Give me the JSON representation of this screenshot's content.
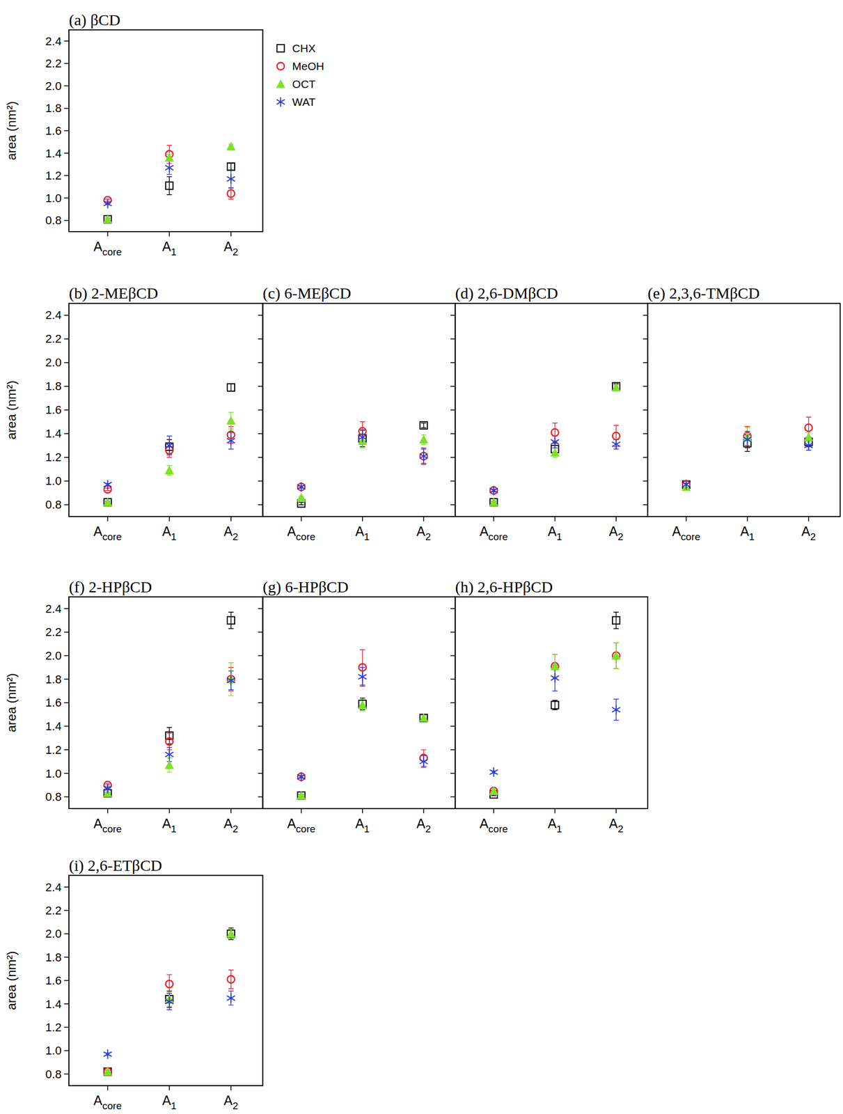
{
  "chart_data": [
    {
      "type": "scatter",
      "title": "(a) βCD",
      "y_label": "area (nm²)",
      "legend": "right",
      "categories": [
        "Acore",
        "A1",
        "A2"
      ],
      "ylim": [
        0.7,
        2.5
      ],
      "yticks": [
        0.8,
        {
          "value": 1,
          "label": "1.0"
        },
        1.2,
        1.4,
        1.6,
        1.8,
        {
          "value": 2,
          "label": "2.0"
        },
        2.2,
        2.4
      ],
      "series": [
        {
          "name": "CHX",
          "color": "#000000",
          "marker": "square",
          "values": [
            0.81,
            1.11,
            1.28
          ],
          "errors": [
            0.01,
            0.08,
            0.03
          ]
        },
        {
          "name": "MeOH",
          "color": "#e8202a",
          "marker": "circle",
          "values": [
            0.98,
            1.39,
            1.04
          ],
          "errors": [
            0.01,
            0.08,
            0.05
          ]
        },
        {
          "name": "OCT",
          "color": "#7ee02a",
          "marker": "triangle",
          "values": [
            0.81,
            1.36,
            1.46
          ],
          "errors": [
            0.01,
            0.03,
            0.02
          ]
        },
        {
          "name": "WAT",
          "color": "#2b3bd9",
          "marker": "asterisk",
          "values": [
            0.95,
            1.27,
            1.17
          ],
          "errors": [
            0.01,
            0.06,
            0.08
          ]
        }
      ]
    },
    {
      "type": "scatter",
      "title": "(b) 2-MEβCD",
      "y_label": "area (nm²)",
      "categories": [
        "Acore",
        "A1",
        "A2"
      ],
      "ylim": [
        0.7,
        2.5
      ],
      "yticks": [
        0.8,
        {
          "value": 1,
          "label": "1.0"
        },
        1.2,
        1.4,
        1.6,
        1.8,
        {
          "value": 2,
          "label": "2.0"
        },
        2.2,
        2.4
      ],
      "series": [
        {
          "color": "#000000",
          "marker": "square",
          "values": [
            0.82,
            1.29,
            1.79
          ],
          "errors": [
            0.01,
            0.06,
            0.03
          ]
        },
        {
          "color": "#e8202a",
          "marker": "circle",
          "values": [
            0.93,
            1.26,
            1.39
          ],
          "errors": [
            0.01,
            0.06,
            0.07
          ]
        },
        {
          "color": "#7ee02a",
          "marker": "triangle",
          "values": [
            0.82,
            1.09,
            1.51
          ],
          "errors": [
            0.01,
            0.04,
            0.07
          ]
        },
        {
          "color": "#2b3bd9",
          "marker": "asterisk",
          "values": [
            0.97,
            1.3,
            1.34
          ],
          "errors": [
            0.01,
            0.08,
            0.07
          ]
        }
      ]
    },
    {
      "type": "scatter",
      "title": "(c) 6-MEβCD",
      "tick_labels": "x",
      "categories": [
        "Acore",
        "A1",
        "A2"
      ],
      "ylim": [
        0.7,
        2.5
      ],
      "yticks": [
        0.8,
        {
          "value": 1,
          "label": "1.0"
        },
        1.2,
        1.4,
        1.6,
        1.8,
        {
          "value": 2,
          "label": "2.0"
        },
        2.2,
        2.4
      ],
      "series": [
        {
          "color": "#000000",
          "marker": "square",
          "values": [
            0.81,
            1.36,
            1.47
          ],
          "errors": [
            0.01,
            0.07,
            0.02
          ]
        },
        {
          "color": "#e8202a",
          "marker": "circle",
          "values": [
            0.95,
            1.42,
            1.21
          ],
          "errors": [
            0.01,
            0.08,
            0.07
          ]
        },
        {
          "color": "#7ee02a",
          "marker": "triangle",
          "values": [
            0.86,
            1.34,
            1.35
          ],
          "errors": [
            0.01,
            0.06,
            0.04
          ]
        },
        {
          "color": "#2b3bd9",
          "marker": "asterisk",
          "values": [
            0.95,
            1.37,
            1.21
          ],
          "errors": [
            0.01,
            0.06,
            0.06
          ]
        }
      ]
    },
    {
      "type": "scatter",
      "title": "(d) 2,6-DMβCD",
      "tick_labels": "x",
      "categories": [
        "Acore",
        "A1",
        "A2"
      ],
      "ylim": [
        0.7,
        2.5
      ],
      "yticks": [
        0.8,
        {
          "value": 1,
          "label": "1.0"
        },
        1.2,
        1.4,
        1.6,
        1.8,
        {
          "value": 2,
          "label": "2.0"
        },
        2.2,
        2.4
      ],
      "series": [
        {
          "color": "#000000",
          "marker": "square",
          "values": [
            0.82,
            1.27,
            1.8
          ],
          "errors": [
            0.01,
            0.05,
            0.02
          ]
        },
        {
          "color": "#e8202a",
          "marker": "circle",
          "values": [
            0.92,
            1.41,
            1.38
          ],
          "errors": [
            0.01,
            0.08,
            0.09
          ]
        },
        {
          "color": "#7ee02a",
          "marker": "triangle",
          "values": [
            0.82,
            1.24,
            1.79
          ],
          "errors": [
            0.01,
            0.04,
            0.02
          ]
        },
        {
          "color": "#2b3bd9",
          "marker": "asterisk",
          "values": [
            0.92,
            1.33,
            1.31
          ],
          "errors": [
            0.01,
            0.05,
            0.04
          ]
        }
      ]
    },
    {
      "type": "scatter",
      "title": "(e) 2,3,6-TMβCD",
      "tick_labels": "x",
      "categories": [
        "Acore",
        "A1",
        "A2"
      ],
      "ylim": [
        0.7,
        2.5
      ],
      "yticks": [
        0.8,
        {
          "value": 1,
          "label": "1.0"
        },
        1.2,
        1.4,
        1.6,
        1.8,
        {
          "value": 2,
          "label": "2.0"
        },
        2.2,
        2.4
      ],
      "series": [
        {
          "color": "#000000",
          "marker": "square",
          "values": [
            0.97,
            1.32,
            1.33
          ],
          "errors": [
            0.01,
            0.07,
            0.04
          ]
        },
        {
          "color": "#e8202a",
          "marker": "circle",
          "values": [
            0.97,
            1.38,
            1.45
          ],
          "errors": [
            0.01,
            0.08,
            0.09
          ]
        },
        {
          "color": "#7ee02a",
          "marker": "triangle",
          "values": [
            0.95,
            1.37,
            1.37
          ],
          "errors": [
            0.01,
            0.08,
            0.04
          ]
        },
        {
          "color": "#2b3bd9",
          "marker": "asterisk",
          "values": [
            0.97,
            1.35,
            1.3
          ],
          "errors": [
            0.01,
            0.07,
            0.04
          ]
        }
      ]
    },
    {
      "type": "scatter",
      "title": "(f) 2-HPβCD",
      "y_label": "area (nm²)",
      "categories": [
        "Acore",
        "A1",
        "A2"
      ],
      "ylim": [
        0.7,
        2.5
      ],
      "yticks": [
        0.8,
        {
          "value": 1,
          "label": "1.0"
        },
        1.2,
        1.4,
        1.6,
        1.8,
        {
          "value": 2,
          "label": "2.0"
        },
        2.2,
        2.4
      ],
      "series": [
        {
          "color": "#000000",
          "marker": "square",
          "values": [
            0.83,
            1.32,
            2.3
          ],
          "errors": [
            0.01,
            0.07,
            0.07
          ]
        },
        {
          "color": "#e8202a",
          "marker": "circle",
          "values": [
            0.9,
            1.27,
            1.8
          ],
          "errors": [
            0.01,
            0.07,
            0.1
          ]
        },
        {
          "color": "#7ee02a",
          "marker": "triangle",
          "values": [
            0.83,
            1.07,
            1.8
          ],
          "errors": [
            0.01,
            0.06,
            0.14
          ]
        },
        {
          "color": "#2b3bd9",
          "marker": "asterisk",
          "values": [
            0.87,
            1.16,
            1.79
          ],
          "errors": [
            0.01,
            0.06,
            0.08
          ]
        }
      ]
    },
    {
      "type": "scatter",
      "title": "(g) 6-HPβCD",
      "tick_labels": "x",
      "categories": [
        "Acore",
        "A1",
        "A2"
      ],
      "ylim": [
        0.7,
        2.5
      ],
      "yticks": [
        0.8,
        {
          "value": 1,
          "label": "1.0"
        },
        1.2,
        1.4,
        1.6,
        1.8,
        {
          "value": 2,
          "label": "2.0"
        },
        2.2,
        2.4
      ],
      "series": [
        {
          "color": "#000000",
          "marker": "square",
          "values": [
            0.81,
            1.59,
            1.47
          ],
          "errors": [
            0.01,
            0.05,
            0.02
          ]
        },
        {
          "color": "#e8202a",
          "marker": "circle",
          "values": [
            0.97,
            1.9,
            1.13
          ],
          "errors": [
            0.01,
            0.15,
            0.07
          ]
        },
        {
          "color": "#7ee02a",
          "marker": "triangle",
          "values": [
            0.81,
            1.58,
            1.47
          ],
          "errors": [
            0.01,
            0.05,
            0.02
          ]
        },
        {
          "color": "#2b3bd9",
          "marker": "asterisk",
          "values": [
            0.97,
            1.82,
            1.1
          ],
          "errors": [
            0.01,
            0.08,
            0.05
          ]
        }
      ]
    },
    {
      "type": "scatter",
      "title": "(h) 2,6-HPβCD",
      "tick_labels": "x",
      "categories": [
        "Acore",
        "A1",
        "A2"
      ],
      "ylim": [
        0.7,
        2.5
      ],
      "yticks": [
        0.8,
        {
          "value": 1,
          "label": "1.0"
        },
        1.2,
        1.4,
        1.6,
        1.8,
        {
          "value": 2,
          "label": "2.0"
        },
        2.2,
        2.4
      ],
      "series": [
        {
          "color": "#000000",
          "marker": "square",
          "values": [
            0.82,
            1.58,
            2.3
          ],
          "errors": [
            0.01,
            0.04,
            0.07
          ]
        },
        {
          "color": "#e8202a",
          "marker": "circle",
          "values": [
            0.85,
            1.91,
            2.0
          ],
          "errors": [
            0.01,
            0.1,
            0.11
          ]
        },
        {
          "color": "#7ee02a",
          "marker": "triangle",
          "values": [
            0.85,
            1.91,
            2.0
          ],
          "errors": [
            0.01,
            0.1,
            0.11
          ]
        },
        {
          "color": "#2b3bd9",
          "marker": "asterisk",
          "values": [
            1.01,
            1.81,
            1.54
          ],
          "errors": [
            0.01,
            0.11,
            0.09
          ]
        }
      ]
    },
    {
      "type": "scatter",
      "title": "(i) 2,6-ETβCD",
      "y_label": "area (nm²)",
      "categories": [
        "Acore",
        "A1",
        "A2"
      ],
      "ylim": [
        0.7,
        2.5
      ],
      "yticks": [
        0.8,
        {
          "value": 1,
          "label": "1.0"
        },
        1.2,
        1.4,
        1.6,
        1.8,
        {
          "value": 2,
          "label": "2.0"
        },
        2.2,
        2.4
      ],
      "series": [
        {
          "color": "#000000",
          "marker": "square",
          "values": [
            0.82,
            1.44,
            2.0
          ],
          "errors": [
            0.01,
            0.07,
            0.05
          ]
        },
        {
          "color": "#e8202a",
          "marker": "circle",
          "values": [
            0.82,
            1.57,
            1.61
          ],
          "errors": [
            0.01,
            0.08,
            0.08
          ]
        },
        {
          "color": "#7ee02a",
          "marker": "triangle",
          "values": [
            0.82,
            1.44,
            2.0
          ],
          "errors": [
            0.01,
            0.06,
            0.04
          ]
        },
        {
          "color": "#2b3bd9",
          "marker": "asterisk",
          "values": [
            0.97,
            1.42,
            1.45
          ],
          "errors": [
            0.01,
            0.07,
            0.06
          ]
        }
      ]
    }
  ]
}
